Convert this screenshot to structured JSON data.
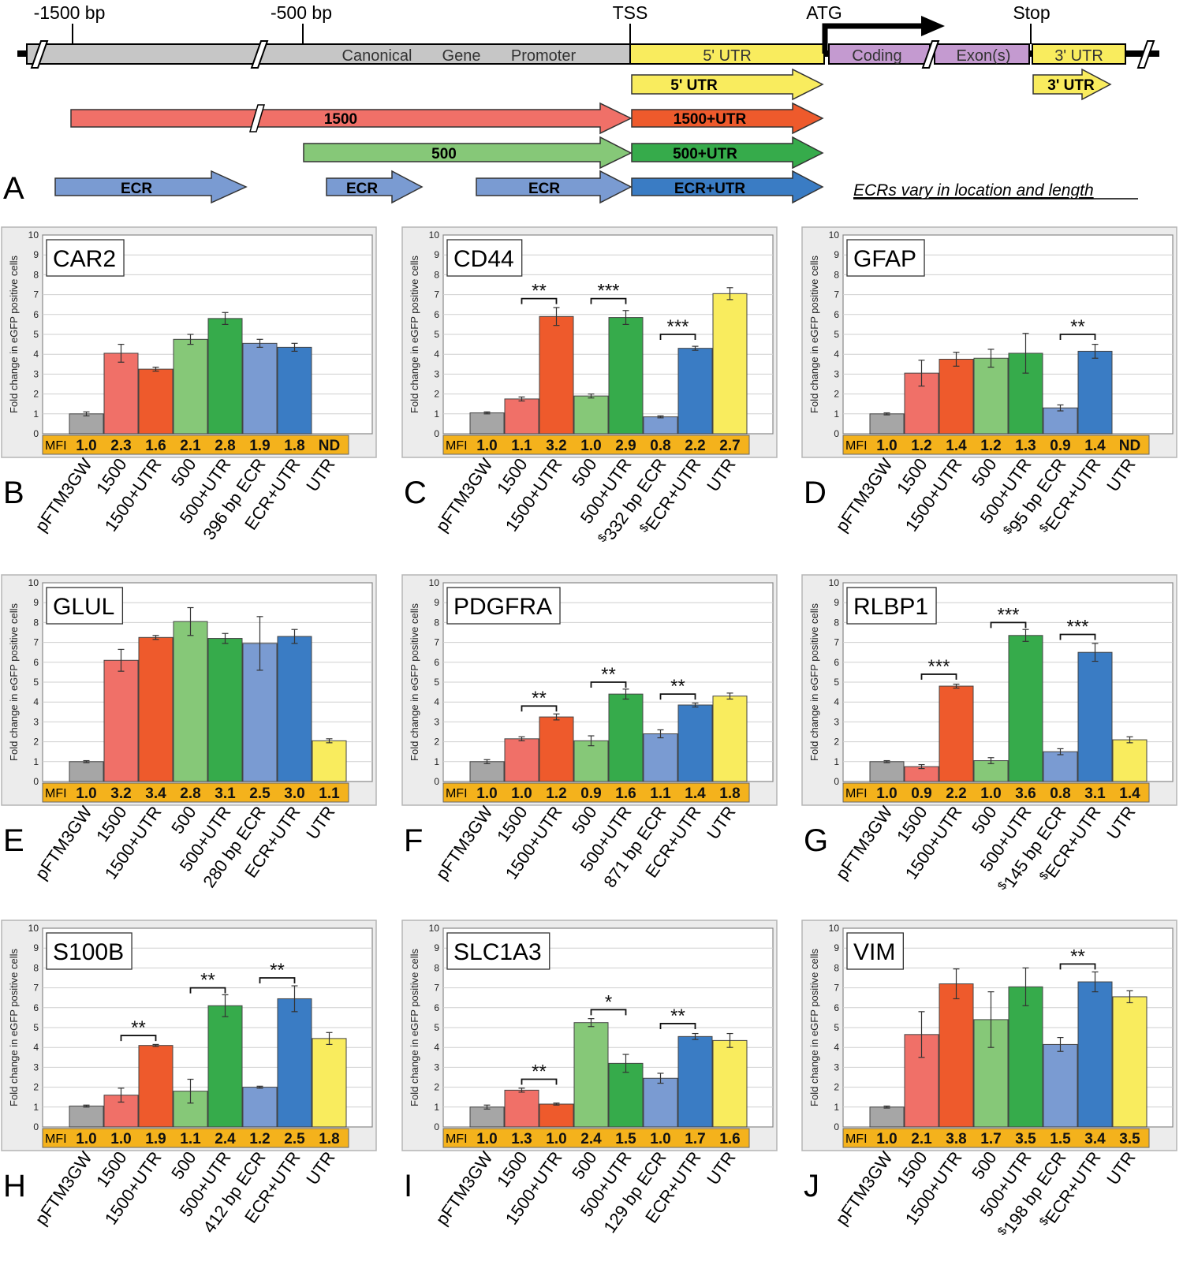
{
  "colors": {
    "grey": "#a6a6a6",
    "light_red": "#f07068",
    "red": "#ee5a2c",
    "light_green": "#86c878",
    "green": "#36ab4b",
    "light_blue": "#7a9bd2",
    "blue": "#3a7cc4",
    "yellow": "#f9ec5e",
    "purple": "#c49ad0",
    "mfi_bar": "#f4b21c",
    "panel_bg": "#ececec",
    "promoter": "#c6c6c6"
  },
  "schematic": {
    "panel_letter": "A",
    "top_labels": [
      "-1500 bp",
      "-500 bp",
      "TSS",
      "ATG",
      "Stop"
    ],
    "gene_regions": [
      "Canonical",
      "Gene",
      "Promoter",
      "5' UTR",
      "Coding",
      "Exon(s)",
      "3' UTR"
    ],
    "constructs": [
      "5' UTR",
      "3' UTR",
      "1500",
      "1500+UTR",
      "500",
      "500+UTR",
      "ECR",
      "ECR",
      "ECR",
      "ECR+UTR"
    ],
    "note": "ECRs vary in location and length"
  },
  "chart_data": [
    {
      "type": "bar",
      "panel": "B",
      "title": "CAR2",
      "ylabel": "Fold change in eGFP positive cells",
      "ylim": [
        0,
        10
      ],
      "categories": [
        "pFTM3GW",
        "1500",
        "1500+UTR",
        "500",
        "500+UTR",
        "396 bp ECR",
        "ECR+UTR",
        "UTR"
      ],
      "values": [
        1.0,
        4.05,
        3.25,
        4.75,
        5.8,
        4.55,
        4.35,
        0
      ],
      "errors": [
        0.1,
        0.45,
        0.1,
        0.25,
        0.3,
        0.2,
        0.2,
        0
      ],
      "mfi_label": "MFI",
      "mfi": [
        "1.0",
        "2.3",
        "1.6",
        "2.1",
        "2.8",
        "1.9",
        "1.8",
        "ND"
      ],
      "significance": []
    },
    {
      "type": "bar",
      "panel": "C",
      "title": "CD44",
      "ylabel": "Fold change in eGFP positive cells",
      "ylim": [
        0,
        10
      ],
      "categories": [
        "pFTM3GW",
        "1500",
        "1500+UTR",
        "500",
        "500+UTR",
        "$332 bp ECR",
        "$ECR+UTR",
        "UTR"
      ],
      "values": [
        1.05,
        1.75,
        5.9,
        1.9,
        5.85,
        0.85,
        4.3,
        7.05
      ],
      "errors": [
        0.05,
        0.1,
        0.45,
        0.1,
        0.35,
        0.05,
        0.1,
        0.3
      ],
      "mfi_label": "MFI",
      "mfi": [
        "1.0",
        "1.1",
        "3.2",
        "1.0",
        "2.9",
        "0.8",
        "2.2",
        "2.7"
      ],
      "significance": [
        {
          "from": 1,
          "to": 2,
          "label": "**",
          "y": 6.8
        },
        {
          "from": 3,
          "to": 4,
          "label": "***",
          "y": 6.8
        },
        {
          "from": 5,
          "to": 6,
          "label": "***",
          "y": 5.0
        }
      ]
    },
    {
      "type": "bar",
      "panel": "D",
      "title": "GFAP",
      "ylabel": "Fold change in eGFP positive cells",
      "ylim": [
        0,
        10
      ],
      "categories": [
        "pFTM3GW",
        "1500",
        "1500+UTR",
        "500",
        "500+UTR",
        "$95 bp ECR",
        "$ECR+UTR",
        "UTR"
      ],
      "values": [
        1.0,
        3.05,
        3.75,
        3.8,
        4.05,
        1.3,
        4.15,
        0
      ],
      "errors": [
        0.05,
        0.65,
        0.35,
        0.45,
        1.0,
        0.15,
        0.35,
        0
      ],
      "mfi_label": "MFI",
      "mfi": [
        "1.0",
        "1.2",
        "1.4",
        "1.2",
        "1.3",
        "0.9",
        "1.4",
        "ND"
      ],
      "significance": [
        {
          "from": 5,
          "to": 6,
          "label": "**",
          "y": 5.0
        }
      ]
    },
    {
      "type": "bar",
      "panel": "E",
      "title": "GLUL",
      "ylabel": "Fold change in eGFP positive cells",
      "ylim": [
        0,
        10
      ],
      "categories": [
        "pFTM3GW",
        "1500",
        "1500+UTR",
        "500",
        "500+UTR",
        "280 bp ECR",
        "ECR+UTR",
        "UTR"
      ],
      "values": [
        1.0,
        6.1,
        7.25,
        8.05,
        7.2,
        6.95,
        7.3,
        2.05
      ],
      "errors": [
        0.05,
        0.55,
        0.1,
        0.7,
        0.25,
        1.35,
        0.35,
        0.1
      ],
      "mfi_label": "MFI",
      "mfi": [
        "1.0",
        "3.2",
        "3.4",
        "2.8",
        "3.1",
        "2.5",
        "3.0",
        "1.1"
      ],
      "significance": []
    },
    {
      "type": "bar",
      "panel": "F",
      "title": "PDGFRA",
      "ylabel": "Fold change in eGFP positive cells",
      "ylim": [
        0,
        10
      ],
      "categories": [
        "pFTM3GW",
        "1500",
        "1500+UTR",
        "500",
        "500+UTR",
        "871 bp ECR",
        "ECR+UTR",
        "UTR"
      ],
      "values": [
        1.0,
        2.15,
        3.25,
        2.05,
        4.4,
        2.4,
        3.85,
        4.3
      ],
      "errors": [
        0.1,
        0.1,
        0.15,
        0.25,
        0.25,
        0.2,
        0.1,
        0.15
      ],
      "mfi_label": "MFI",
      "mfi": [
        "1.0",
        "1.0",
        "1.2",
        "0.9",
        "1.6",
        "1.1",
        "1.4",
        "1.8"
      ],
      "significance": [
        {
          "from": 1,
          "to": 2,
          "label": "**",
          "y": 3.8
        },
        {
          "from": 3,
          "to": 4,
          "label": "**",
          "y": 5.0
        },
        {
          "from": 5,
          "to": 6,
          "label": "**",
          "y": 4.4
        }
      ]
    },
    {
      "type": "bar",
      "panel": "G",
      "title": "RLBP1",
      "ylabel": "Fold change in eGFP positive cells",
      "ylim": [
        0,
        10
      ],
      "categories": [
        "pFTM3GW",
        "1500",
        "1500+UTR",
        "500",
        "500+UTR",
        "$145 bp ECR",
        "$ECR+UTR",
        "UTR"
      ],
      "values": [
        1.0,
        0.75,
        4.8,
        1.05,
        7.35,
        1.5,
        6.5,
        2.1
      ],
      "errors": [
        0.05,
        0.1,
        0.1,
        0.15,
        0.3,
        0.15,
        0.45,
        0.15
      ],
      "mfi_label": "MFI",
      "mfi": [
        "1.0",
        "0.9",
        "2.2",
        "1.0",
        "3.6",
        "0.8",
        "3.1",
        "1.4"
      ],
      "significance": [
        {
          "from": 1,
          "to": 2,
          "label": "***",
          "y": 5.4
        },
        {
          "from": 3,
          "to": 4,
          "label": "***",
          "y": 8.0
        },
        {
          "from": 5,
          "to": 6,
          "label": "***",
          "y": 7.4
        }
      ]
    },
    {
      "type": "bar",
      "panel": "H",
      "title": "S100B",
      "ylabel": "Fold change in eGFP positive cells",
      "ylim": [
        0,
        10
      ],
      "categories": [
        "pFTM3GW",
        "1500",
        "1500+UTR",
        "500",
        "500+UTR",
        "412 bp ECR",
        "ECR+UTR",
        "UTR"
      ],
      "values": [
        1.05,
        1.6,
        4.1,
        1.8,
        6.1,
        2.0,
        6.45,
        4.45
      ],
      "errors": [
        0.05,
        0.35,
        0.05,
        0.6,
        0.55,
        0.05,
        0.65,
        0.3
      ],
      "mfi_label": "MFI",
      "mfi": [
        "1.0",
        "1.0",
        "1.9",
        "1.1",
        "2.4",
        "1.2",
        "2.5",
        "1.8"
      ],
      "significance": [
        {
          "from": 1,
          "to": 2,
          "label": "**",
          "y": 4.6
        },
        {
          "from": 3,
          "to": 4,
          "label": "**",
          "y": 7.0
        },
        {
          "from": 5,
          "to": 6,
          "label": "**",
          "y": 7.5
        }
      ]
    },
    {
      "type": "bar",
      "panel": "I",
      "title": "SLC1A3",
      "ylabel": "Fold change in eGFP positive cells",
      "ylim": [
        0,
        10
      ],
      "categories": [
        "pFTM3GW",
        "1500",
        "1500+UTR",
        "500",
        "500+UTR",
        "129 bp ECR",
        "ECR+UTR",
        "UTR"
      ],
      "values": [
        1.0,
        1.85,
        1.15,
        5.25,
        3.2,
        2.45,
        4.55,
        4.35
      ],
      "errors": [
        0.1,
        0.1,
        0.05,
        0.2,
        0.45,
        0.25,
        0.15,
        0.35
      ],
      "mfi_label": "MFI",
      "mfi": [
        "1.0",
        "1.3",
        "1.0",
        "2.4",
        "1.5",
        "1.0",
        "1.7",
        "1.6"
      ],
      "significance": [
        {
          "from": 1,
          "to": 2,
          "label": "**",
          "y": 2.4
        },
        {
          "from": 3,
          "to": 4,
          "label": "*",
          "y": 5.9
        },
        {
          "from": 5,
          "to": 6,
          "label": "**",
          "y": 5.2
        }
      ]
    },
    {
      "type": "bar",
      "panel": "J",
      "title": "VIM",
      "ylabel": "Fold change in eGFP positive cells",
      "ylim": [
        0,
        10
      ],
      "categories": [
        "pFTM3GW",
        "1500",
        "1500+UTR",
        "500",
        "500+UTR",
        "$198 bp ECR",
        "$ECR+UTR",
        "UTR"
      ],
      "values": [
        1.0,
        4.65,
        7.2,
        5.4,
        7.05,
        4.15,
        7.3,
        6.55
      ],
      "errors": [
        0.05,
        1.15,
        0.75,
        1.4,
        0.95,
        0.35,
        0.5,
        0.3
      ],
      "mfi_label": "MFI",
      "mfi": [
        "1.0",
        "2.1",
        "3.8",
        "1.7",
        "3.5",
        "1.5",
        "3.4",
        "3.5"
      ],
      "significance": [
        {
          "from": 5,
          "to": 6,
          "label": "**",
          "y": 8.2
        }
      ]
    }
  ]
}
